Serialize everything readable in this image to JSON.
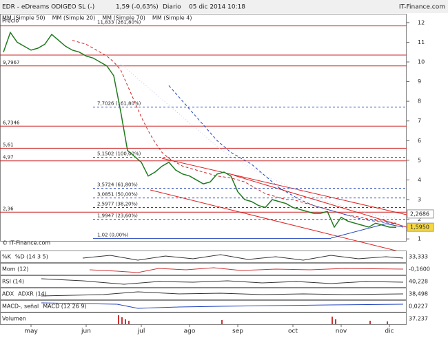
{
  "header": {
    "title": "EDR - eDreams ODIGEO SL (-)",
    "quote": "1,59 (-0,63%)",
    "period": "Diario",
    "datetime": "05 dic 2014 10:18",
    "site": "IT-Finance.com",
    "copyright": "© IT-Finance.com"
  },
  "indicators": [
    {
      "labels": [
        "%K",
        "%D (14 3 5)"
      ],
      "value": "33,333"
    },
    {
      "labels": [
        "Mom (12)"
      ],
      "value": "-0,1600"
    },
    {
      "labels": [
        "RSI (14)"
      ],
      "value": "40,228"
    },
    {
      "labels": [
        "ADX",
        "ADXR (14)"
      ],
      "value": "38,498"
    },
    {
      "labels": [
        "MACD-, señal",
        "MACD (12 26 9)"
      ],
      "value": "0,0227"
    },
    {
      "labels": [
        "Volumen"
      ],
      "value": "37.237"
    }
  ],
  "chart_data": {
    "type": "line",
    "ylabel": "Precio",
    "ylim": [
      0.9,
      12.45
    ],
    "yticks": [
      1,
      2,
      3,
      4,
      5,
      6,
      7,
      8,
      9,
      10,
      11,
      12
    ],
    "xticks": [
      {
        "value": 4,
        "label": "may"
      },
      {
        "value": 12,
        "label": "jun"
      },
      {
        "value": 20,
        "label": "jul"
      },
      {
        "value": 27,
        "label": "ago"
      },
      {
        "value": 34,
        "label": "sep"
      },
      {
        "value": 42,
        "label": "oct"
      },
      {
        "value": 49,
        "label": "nov"
      },
      {
        "value": 56,
        "label": "dic"
      }
    ],
    "series": [
      {
        "name": "Precio",
        "color": "#1f7a1f",
        "values": [
          10.5,
          11.5,
          11.0,
          10.8,
          10.6,
          10.7,
          10.9,
          11.4,
          11.1,
          10.8,
          10.6,
          10.5,
          10.3,
          10.2,
          10.0,
          9.8,
          9.3,
          7.5,
          5.5,
          5.2,
          4.9,
          4.2,
          4.4,
          4.7,
          4.9,
          4.5,
          4.3,
          4.2,
          4.0,
          3.8,
          3.9,
          4.3,
          4.4,
          4.2,
          3.4,
          3.0,
          2.9,
          2.7,
          2.6,
          3.0,
          2.9,
          2.8,
          2.6,
          2.5,
          2.4,
          2.3,
          2.3,
          2.4,
          1.6,
          2.1,
          1.9,
          1.8,
          1.7,
          1.6,
          1.8,
          1.7,
          1.6,
          1.59
        ]
      },
      {
        "name": "MM (Simple 50)",
        "color": "#c8c8e8",
        "values": [
          null,
          null,
          null,
          null,
          null,
          null,
          null,
          null,
          null,
          null,
          null,
          null,
          null,
          null,
          null,
          null,
          null,
          9.9,
          9.6,
          9.3,
          9.0,
          8.7,
          8.4,
          8.1,
          7.8,
          7.5,
          7.2,
          6.9,
          6.6,
          6.3,
          6.0,
          5.7,
          5.45,
          5.2,
          5.0,
          4.8,
          4.6,
          4.4,
          4.2,
          4.05,
          3.9,
          3.75,
          3.6,
          3.45,
          3.3,
          3.15,
          3.0,
          2.9,
          2.8,
          2.7,
          2.6,
          2.5,
          2.4,
          2.3,
          2.2,
          2.15,
          2.1,
          2.05
        ]
      },
      {
        "name": "MM (Simple 20)",
        "color": "#cc2222",
        "values": [
          null,
          null,
          null,
          null,
          null,
          null,
          null,
          null,
          null,
          null,
          11.1,
          11.0,
          10.9,
          10.7,
          10.5,
          10.3,
          10.0,
          9.6,
          8.8,
          8.0,
          7.2,
          6.5,
          5.9,
          5.4,
          5.1,
          4.9,
          4.7,
          4.6,
          4.5,
          4.4,
          4.3,
          4.2,
          4.15,
          4.1,
          4.0,
          3.9,
          3.7,
          3.5,
          3.3,
          3.2,
          3.1,
          3.0,
          3.0,
          2.9,
          2.8,
          2.7,
          2.6,
          2.5,
          2.4,
          2.3,
          2.2,
          2.15,
          2.1,
          2.0,
          1.95,
          1.9,
          1.85,
          1.8
        ]
      },
      {
        "name": "MM (Simple 70)",
        "color": "#2244bb",
        "values": [
          null,
          null,
          null,
          null,
          null,
          null,
          null,
          null,
          null,
          null,
          null,
          null,
          null,
          null,
          null,
          null,
          null,
          null,
          null,
          null,
          null,
          null,
          null,
          null,
          8.8,
          8.4,
          8.0,
          7.6,
          7.2,
          6.8,
          6.4,
          6.0,
          5.7,
          5.4,
          5.2,
          5.0,
          4.8,
          4.5,
          4.2,
          3.9,
          3.6,
          3.4,
          3.2,
          3.0,
          2.85,
          2.7,
          2.6,
          2.5,
          2.4,
          2.3,
          2.2,
          2.1,
          2.0,
          1.95,
          1.9,
          1.85,
          1.8,
          1.75
        ]
      }
    ],
    "extra_legend": [
      {
        "name": "MM (Simple 4)",
        "color": "#1f7a1f"
      }
    ],
    "levels": [
      {
        "value": 11.833,
        "label": "11,833 (261,80%)",
        "color": "#cc2222",
        "style": "solid"
      },
      {
        "value": 10.35,
        "color": "#cc2222",
        "style": "solid"
      },
      {
        "value": 9.7967,
        "label": "9,7967",
        "color": "#cc2222",
        "style": "solid"
      },
      {
        "value": 7.7026,
        "label": "7,7026 (161,80%)",
        "color": "#2244bb",
        "style": "dashed"
      },
      {
        "value": 6.7346,
        "label": "6,7346",
        "color": "#cc2222",
        "style": "solid"
      },
      {
        "value": 5.61,
        "label": "5,61",
        "color": "#cc2222",
        "style": "solid"
      },
      {
        "value": 5.1502,
        "label": "5,1502 (100,00%)",
        "color": "#2244bb",
        "style": "dashed"
      },
      {
        "value": 4.97,
        "label": "4,97",
        "color": "#cc2222",
        "style": "solid"
      },
      {
        "value": 3.5724,
        "label": "3,5724 (61,80%)",
        "color": "#2244bb",
        "style": "dashed"
      },
      {
        "value": 3.0851,
        "label": "3,0851 (50,00%)",
        "color": "#2244bb",
        "style": "dashed"
      },
      {
        "value": 2.5977,
        "label": "2,5977 (38,20%)",
        "color": "#2244bb",
        "style": "dashed"
      },
      {
        "value": 2.36,
        "label": "2,36",
        "color": "#cc2222",
        "style": "solid"
      },
      {
        "value": 1.9947,
        "label": "1,9947 (23,60%)",
        "color": "#2244bb",
        "style": "dashed"
      },
      {
        "value": 1.02,
        "label": "1,02 (0,00%)",
        "color": "#2244bb",
        "style": "solid"
      }
    ],
    "price_tags": [
      {
        "value": 2.2686,
        "label": "2,2686",
        "color": "#ffffff"
      },
      {
        "value": 1.595,
        "label": "1,5950",
        "color": "#f5d742"
      }
    ]
  }
}
